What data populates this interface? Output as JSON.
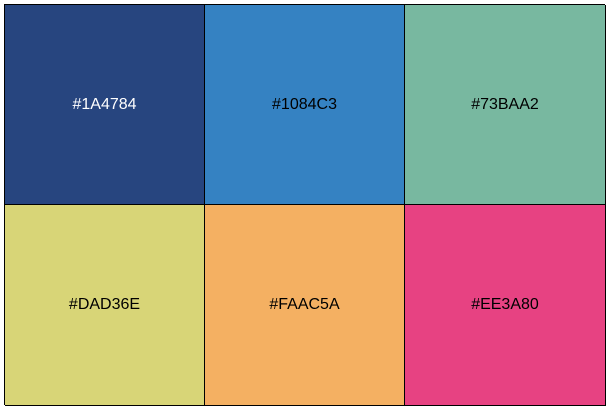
{
  "swatches": [
    {
      "label": "#1A4784",
      "color": "#27457F",
      "text_color": "#FFFFFF"
    },
    {
      "label": "#1084C3",
      "color": "#3582C2",
      "text_color": "#000000"
    },
    {
      "label": "#73BAA2",
      "color": "#78B8A0",
      "text_color": "#000000"
    },
    {
      "label": "#DAD36E",
      "color": "#D8D577",
      "text_color": "#000000"
    },
    {
      "label": "#FAAC5A",
      "color": "#F4B062",
      "text_color": "#000000"
    },
    {
      "label": "#EE3A80",
      "color": "#E74282",
      "text_color": "#000000"
    }
  ]
}
